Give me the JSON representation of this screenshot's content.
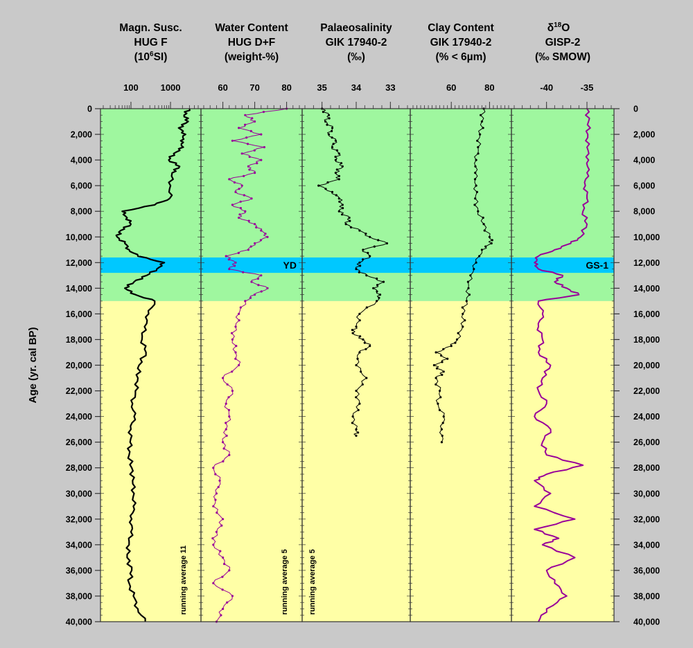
{
  "chart_data": {
    "type": "line",
    "y_axis": {
      "label": "Age (yr. cal BP)",
      "range": [
        0,
        40000
      ],
      "ticks": [
        0,
        2000,
        4000,
        6000,
        8000,
        10000,
        12000,
        14000,
        16000,
        18000,
        20000,
        22000,
        24000,
        26000,
        28000,
        30000,
        32000,
        34000,
        36000,
        38000,
        40000
      ],
      "tick_labels": [
        "0",
        "2,000",
        "4,000",
        "6,000",
        "8,000",
        "10,000",
        "12,000",
        "14,000",
        "16,000",
        "18,000",
        "20,000",
        "22,000",
        "24,000",
        "26,000",
        "28,000",
        "30,000",
        "32,000",
        "34,000",
        "36,000",
        "38,000",
        "40,000"
      ]
    },
    "background_zones": [
      {
        "from": 0,
        "to": 15000,
        "color": "#9ff79f"
      },
      {
        "from": 15000,
        "to": 40000,
        "color": "#ffffa6"
      },
      {
        "from": 11600,
        "to": 12800,
        "color": "#00c8ff"
      }
    ],
    "colors": {
      "black_series": "#000000",
      "purple_series": "#990099",
      "frame": "#333333"
    },
    "panels": [
      {
        "title": [
          "Magn. Susc.",
          "HUG F",
          "(10^6SI)"
        ],
        "scale": "log",
        "xlim": [
          20,
          5000
        ],
        "ticks": [
          100,
          1000
        ],
        "tick_labels": [
          "100",
          "1000"
        ],
        "series_color": "#000000",
        "markers": false,
        "note": "running average 11",
        "series": {
          "age": [
            0,
            500,
            1000,
            1500,
            2000,
            2500,
            3000,
            3500,
            4000,
            4500,
            5000,
            6000,
            7000,
            7500,
            8000,
            8500,
            9000,
            9500,
            10000,
            10500,
            11000,
            11500,
            12000,
            12500,
            13000,
            13500,
            14000,
            14500,
            15000,
            16000,
            17000,
            18000,
            19000,
            20000,
            21000,
            22000,
            23000,
            24000,
            25000,
            26000,
            27000,
            28000,
            29000,
            30000,
            31000,
            32000,
            33000,
            34000,
            35000,
            36000,
            37000,
            38000,
            39000,
            40000
          ],
          "value": [
            3000,
            2200,
            2800,
            1600,
            2400,
            1800,
            2100,
            1200,
            900,
            1700,
            1100,
            1000,
            950,
            400,
            60,
            80,
            100,
            55,
            45,
            70,
            90,
            150,
            700,
            450,
            250,
            120,
            70,
            130,
            400,
            280,
            220,
            190,
            240,
            160,
            150,
            130,
            110,
            120,
            100,
            95,
            90,
            105,
            110,
            120,
            115,
            105,
            100,
            90,
            80,
            105,
            90,
            115,
            150,
            230
          ]
        }
      },
      {
        "title": [
          "Water Content",
          "HUG D+F",
          "(weight-%)"
        ],
        "scale": "linear",
        "xlim": [
          54,
          84
        ],
        "ticks": [
          60,
          70,
          80
        ],
        "tick_labels": [
          "60",
          "70",
          "80"
        ],
        "series_color": "#990099",
        "markers": true,
        "note": "running average 5",
        "series": {
          "age": [
            0,
            500,
            1000,
            1500,
            2000,
            2500,
            3000,
            3500,
            4000,
            4500,
            5000,
            5500,
            6000,
            6500,
            7000,
            7500,
            8000,
            8500,
            9000,
            9500,
            10000,
            10500,
            11000,
            11500,
            12000,
            12500,
            13000,
            13500,
            14000,
            14500,
            15000,
            16000,
            17000,
            18000,
            19000,
            20000,
            21000,
            22000,
            23000,
            24000,
            25000,
            26000,
            27000,
            28000,
            29000,
            30000,
            31000,
            32000,
            33000,
            34000,
            35000,
            36000,
            37000,
            38000,
            39000,
            40000
          ],
          "value": [
            80,
            67,
            70,
            65,
            72,
            63,
            73,
            66,
            72,
            68,
            70,
            62,
            66,
            64,
            69,
            63,
            67,
            65,
            70,
            72,
            74,
            70,
            68,
            61,
            64,
            62,
            72,
            69,
            74,
            70,
            67,
            65,
            64,
            63,
            64,
            65,
            60,
            63,
            61,
            62,
            61,
            60,
            62,
            57,
            59,
            58,
            57,
            60,
            58,
            57,
            60,
            62,
            57,
            63,
            60,
            58
          ]
        }
      },
      {
        "title": [
          "Palaeosalinity",
          "GIK 17940-2",
          "(‰)"
        ],
        "scale": "linear",
        "xlim": [
          35.5,
          32.5
        ],
        "reversed": true,
        "ticks": [
          35,
          34,
          33
        ],
        "tick_labels": [
          "35",
          "34",
          "33"
        ],
        "series_color": "#000000",
        "markers": true,
        "note": "running average 5",
        "series": {
          "age": [
            0,
            500,
            1000,
            1500,
            2000,
            2500,
            3000,
            3500,
            4000,
            4500,
            5000,
            5500,
            6000,
            6500,
            7000,
            7500,
            8000,
            8500,
            9000,
            9500,
            10000,
            10500,
            11000,
            11500,
            12000,
            12500,
            13000,
            13500,
            14000,
            14500,
            15000,
            16000,
            17000,
            17500,
            18000,
            18500,
            19000,
            20000,
            21000,
            22000,
            23000,
            24000,
            25000,
            25500
          ],
          "value": [
            35.0,
            34.8,
            34.9,
            34.7,
            34.8,
            34.6,
            34.7,
            34.5,
            34.6,
            34.4,
            34.6,
            34.5,
            35.1,
            34.7,
            34.5,
            34.4,
            34.5,
            34.2,
            34.3,
            33.9,
            33.6,
            33.1,
            33.8,
            33.6,
            33.9,
            34.0,
            33.7,
            33.2,
            33.5,
            33.3,
            33.4,
            33.9,
            34.0,
            34.1,
            33.8,
            33.6,
            33.9,
            34.0,
            33.7,
            34.0,
            33.9,
            34.1,
            34.0,
            34.0
          ]
        }
      },
      {
        "title": [
          "Clay Content",
          "GIK 17940-2",
          "(% < 6µm)"
        ],
        "scale": "linear",
        "xlim": [
          40,
          90
        ],
        "ticks": [
          60,
          80
        ],
        "tick_labels": [
          "60",
          "80"
        ],
        "series_color": "#000000",
        "markers": true,
        "note": "",
        "series": {
          "age": [
            0,
            1000,
            2000,
            3000,
            4000,
            5000,
            6000,
            7000,
            8000,
            9000,
            10000,
            10500,
            11000,
            12000,
            13000,
            14000,
            15000,
            16000,
            17000,
            18000,
            18500,
            19000,
            19500,
            20000,
            20500,
            21000,
            22000,
            23000,
            24000,
            25000,
            26000
          ],
          "value": [
            77,
            76,
            75,
            74,
            73,
            72.5,
            73,
            72.5,
            74,
            77,
            80,
            81,
            76,
            73,
            70,
            69,
            68,
            66,
            66,
            63,
            60,
            52,
            58,
            51,
            56,
            52,
            54,
            53,
            56,
            55,
            55
          ]
        }
      },
      {
        "title": [
          "δ18O",
          "GISP-2",
          "(‰ SMOW)"
        ],
        "scale": "linear",
        "xlim": [
          -44,
          -32
        ],
        "ticks": [
          -40,
          -35
        ],
        "tick_labels": [
          "-40",
          "-35"
        ],
        "series_color": "#990099",
        "markers": false,
        "note": "",
        "series": {
          "age": [
            0,
            1000,
            2000,
            3000,
            4000,
            5000,
            6000,
            7000,
            8000,
            9000,
            10000,
            10500,
            11000,
            11500,
            12000,
            12500,
            13000,
            13500,
            14000,
            14500,
            15000,
            16000,
            17000,
            18000,
            19000,
            20000,
            21000,
            22000,
            23000,
            24000,
            25000,
            26000,
            27000,
            27800,
            28500,
            29000,
            30000,
            31000,
            32000,
            32800,
            33500,
            34000,
            35000,
            36000,
            37000,
            38000,
            39000,
            40000
          ],
          "value": [
            -35,
            -34.8,
            -34.9,
            -35,
            -34.8,
            -35,
            -35.2,
            -35,
            -35.5,
            -35,
            -35.8,
            -37,
            -39,
            -41,
            -41.5,
            -41,
            -38,
            -39,
            -37.5,
            -36,
            -41,
            -40.5,
            -41,
            -40.5,
            -41,
            -39.5,
            -40.5,
            -41,
            -40,
            -41.5,
            -39.5,
            -40.5,
            -40,
            -35.5,
            -40,
            -41.5,
            -39.5,
            -41.5,
            -36.5,
            -41.5,
            -38.5,
            -40.5,
            -36.5,
            -40,
            -39,
            -37.5,
            -40,
            -41
          ]
        }
      }
    ],
    "annotations": [
      {
        "text": "YD",
        "panel": 1,
        "age": 12200
      },
      {
        "text": "GS-1",
        "panel": 4,
        "age": 12200
      }
    ]
  }
}
